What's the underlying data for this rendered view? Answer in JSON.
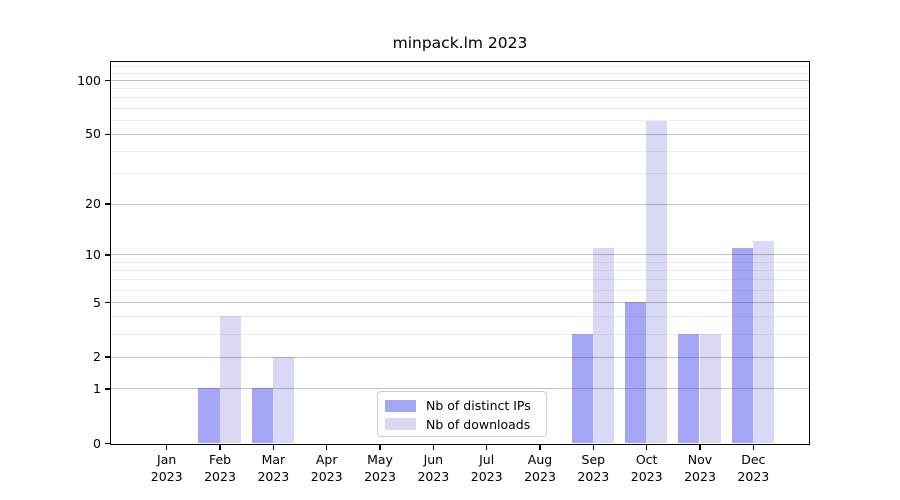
{
  "chart_data": {
    "type": "bar",
    "title": "minpack.lm 2023",
    "categories": [
      "Jan 2023",
      "Feb 2023",
      "Mar 2023",
      "Apr 2023",
      "May 2023",
      "Jun 2023",
      "Jul 2023",
      "Aug 2023",
      "Sep 2023",
      "Oct 2023",
      "Nov 2023",
      "Dec 2023"
    ],
    "series": [
      {
        "name": "Nb of distinct IPs",
        "color": "#a6a6f6",
        "values": [
          0,
          1,
          1,
          0,
          0,
          0,
          0,
          0,
          3,
          5,
          3,
          11
        ]
      },
      {
        "name": "Nb of downloads",
        "color": "#d9d9f6",
        "values": [
          0,
          4,
          2,
          0,
          0,
          0,
          0,
          0,
          11,
          59,
          3,
          12
        ]
      }
    ],
    "xlabel": "",
    "ylabel": "",
    "yscale": "log1p",
    "ylim": [
      0,
      126
    ],
    "yticks": [
      100,
      50,
      20,
      10,
      5,
      2,
      1,
      0
    ],
    "yticks_minor": [
      3,
      4,
      6,
      7,
      8,
      9,
      30,
      40,
      60,
      70,
      80,
      90,
      110,
      120
    ],
    "grid": "horizontal",
    "legend_position": "lower-center-inside"
  },
  "colors": {
    "grid_major": "rgba(80,80,80,0.35)",
    "grid_minor": "rgba(80,80,80,0.10)",
    "spine": "#000000"
  }
}
